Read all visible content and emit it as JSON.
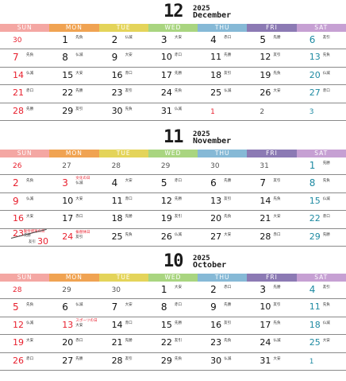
{
  "weekday_colors": [
    "#f4a7a3",
    "#f0a352",
    "#e4d45a",
    "#a9d580",
    "#86b9d6",
    "#8c7ab4",
    "#c6a0d3"
  ],
  "weekdays": [
    "SUN",
    "MON",
    "TUE",
    "WED",
    "THU",
    "FRI",
    "SAT"
  ],
  "months": [
    {
      "number": "12",
      "year": "2025",
      "name": "December",
      "weeks": [
        [
          {
            "d": "30",
            "k": "grey sun"
          },
          {
            "d": "1",
            "r": "先負"
          },
          {
            "d": "2",
            "r": "仏滅"
          },
          {
            "d": "3",
            "r": "大安"
          },
          {
            "d": "4",
            "r": "赤口"
          },
          {
            "d": "5",
            "r": "先勝"
          },
          {
            "d": "6",
            "k": "sat",
            "r": "友引"
          }
        ],
        [
          {
            "d": "7",
            "k": "sun",
            "r": "先負"
          },
          {
            "d": "8",
            "r": "仏滅"
          },
          {
            "d": "9",
            "r": "大安"
          },
          {
            "d": "10",
            "r": "赤口"
          },
          {
            "d": "11",
            "r": "先勝"
          },
          {
            "d": "12",
            "r": "友引"
          },
          {
            "d": "13",
            "k": "sat",
            "r": "先負"
          }
        ],
        [
          {
            "d": "14",
            "k": "sun",
            "r": "仏滅"
          },
          {
            "d": "15",
            "r": "大安"
          },
          {
            "d": "16",
            "r": "赤口"
          },
          {
            "d": "17",
            "r": "先勝"
          },
          {
            "d": "18",
            "r": "友引"
          },
          {
            "d": "19",
            "r": "先負"
          },
          {
            "d": "20",
            "k": "sat",
            "r": "仏滅"
          }
        ],
        [
          {
            "d": "21",
            "k": "sun",
            "r": "赤口"
          },
          {
            "d": "22",
            "r": "先勝"
          },
          {
            "d": "23",
            "r": "友引"
          },
          {
            "d": "24",
            "r": "先負"
          },
          {
            "d": "25",
            "r": "仏滅"
          },
          {
            "d": "26",
            "r": "大安"
          },
          {
            "d": "27",
            "k": "sat",
            "r": "赤口"
          }
        ],
        [
          {
            "d": "28",
            "k": "sun",
            "r": "先勝"
          },
          {
            "d": "29",
            "r": "友引"
          },
          {
            "d": "30",
            "r": "先負"
          },
          {
            "d": "31",
            "r": "仏滅"
          },
          {
            "d": "1",
            "k": "grey sun"
          },
          {
            "d": "2",
            "k": "grey"
          },
          {
            "d": "3",
            "k": "grey sat"
          }
        ]
      ]
    },
    {
      "number": "11",
      "year": "2025",
      "name": "November",
      "weeks": [
        [
          {
            "d": "26",
            "k": "grey sun"
          },
          {
            "d": "27",
            "k": "grey"
          },
          {
            "d": "28",
            "k": "grey"
          },
          {
            "d": "29",
            "k": "grey"
          },
          {
            "d": "30",
            "k": "grey"
          },
          {
            "d": "31",
            "k": "grey"
          },
          {
            "d": "1",
            "k": "sat",
            "r": "先勝"
          }
        ],
        [
          {
            "d": "2",
            "k": "sun",
            "r": "先負"
          },
          {
            "d": "3",
            "k": "hol",
            "n": "文化の日",
            "r": "仏滅"
          },
          {
            "d": "4",
            "r": "大安"
          },
          {
            "d": "5",
            "r": "赤口"
          },
          {
            "d": "6",
            "r": "先勝"
          },
          {
            "d": "7",
            "r": "友引"
          },
          {
            "d": "8",
            "k": "sat",
            "r": "先負"
          }
        ],
        [
          {
            "d": "9",
            "k": "sun",
            "r": "仏滅"
          },
          {
            "d": "10",
            "r": "大安"
          },
          {
            "d": "11",
            "r": "赤口"
          },
          {
            "d": "12",
            "r": "先勝"
          },
          {
            "d": "13",
            "r": "友引"
          },
          {
            "d": "14",
            "r": "先負"
          },
          {
            "d": "15",
            "k": "sat",
            "r": "仏滅"
          }
        ],
        [
          {
            "d": "16",
            "k": "sun",
            "r": "大安"
          },
          {
            "d": "17",
            "r": "赤口"
          },
          {
            "d": "18",
            "r": "先勝"
          },
          {
            "d": "19",
            "r": "友引"
          },
          {
            "d": "20",
            "r": "先負"
          },
          {
            "d": "21",
            "r": "大安"
          },
          {
            "d": "22",
            "k": "sat",
            "r": "赤口"
          }
        ],
        [
          {
            "split": true,
            "d": "23",
            "n": "勤労感謝の日",
            "r": "先勝",
            "d2": "30",
            "r2": "友引"
          },
          {
            "d": "24",
            "k": "hol",
            "n": "振替休日",
            "r": "友引"
          },
          {
            "d": "25",
            "r": "先負"
          },
          {
            "d": "26",
            "r": "仏滅"
          },
          {
            "d": "27",
            "r": "大安"
          },
          {
            "d": "28",
            "r": "赤口"
          },
          {
            "d": "29",
            "k": "sat",
            "r": "先勝"
          }
        ]
      ]
    },
    {
      "number": "10",
      "year": "2025",
      "name": "October",
      "weeks": [
        [
          {
            "d": "28",
            "k": "grey sun"
          },
          {
            "d": "29",
            "k": "grey"
          },
          {
            "d": "30",
            "k": "grey"
          },
          {
            "d": "1",
            "r": "大安"
          },
          {
            "d": "2",
            "r": "赤口"
          },
          {
            "d": "3",
            "r": "先勝"
          },
          {
            "d": "4",
            "k": "sat",
            "r": "友引"
          }
        ],
        [
          {
            "d": "5",
            "k": "sun",
            "r": "先負"
          },
          {
            "d": "6",
            "r": "仏滅"
          },
          {
            "d": "7",
            "r": "大安"
          },
          {
            "d": "8",
            "r": "赤口"
          },
          {
            "d": "9",
            "r": "先勝"
          },
          {
            "d": "10",
            "r": "友引"
          },
          {
            "d": "11",
            "k": "sat",
            "r": "先負"
          }
        ],
        [
          {
            "d": "12",
            "k": "sun",
            "r": "仏滅"
          },
          {
            "d": "13",
            "k": "hol",
            "n": "スポーツの日",
            "r": "大安"
          },
          {
            "d": "14",
            "r": "赤口"
          },
          {
            "d": "15",
            "r": "先勝"
          },
          {
            "d": "16",
            "r": "友引"
          },
          {
            "d": "17",
            "r": "先負"
          },
          {
            "d": "18",
            "k": "sat",
            "r": "仏滅"
          }
        ],
        [
          {
            "d": "19",
            "k": "sun",
            "r": "大安"
          },
          {
            "d": "20",
            "r": "赤口"
          },
          {
            "d": "21",
            "r": "先勝"
          },
          {
            "d": "22",
            "r": "友引"
          },
          {
            "d": "23",
            "r": "先負"
          },
          {
            "d": "24",
            "r": "仏滅"
          },
          {
            "d": "25",
            "k": "sat",
            "r": "大安"
          }
        ],
        [
          {
            "d": "26",
            "k": "sun",
            "r": "赤口"
          },
          {
            "d": "27",
            "r": "先勝"
          },
          {
            "d": "28",
            "r": "友引"
          },
          {
            "d": "29",
            "r": "先負"
          },
          {
            "d": "30",
            "r": "仏滅"
          },
          {
            "d": "31",
            "r": "大安"
          },
          {
            "d": "1",
            "k": "grey sat"
          }
        ]
      ]
    }
  ]
}
